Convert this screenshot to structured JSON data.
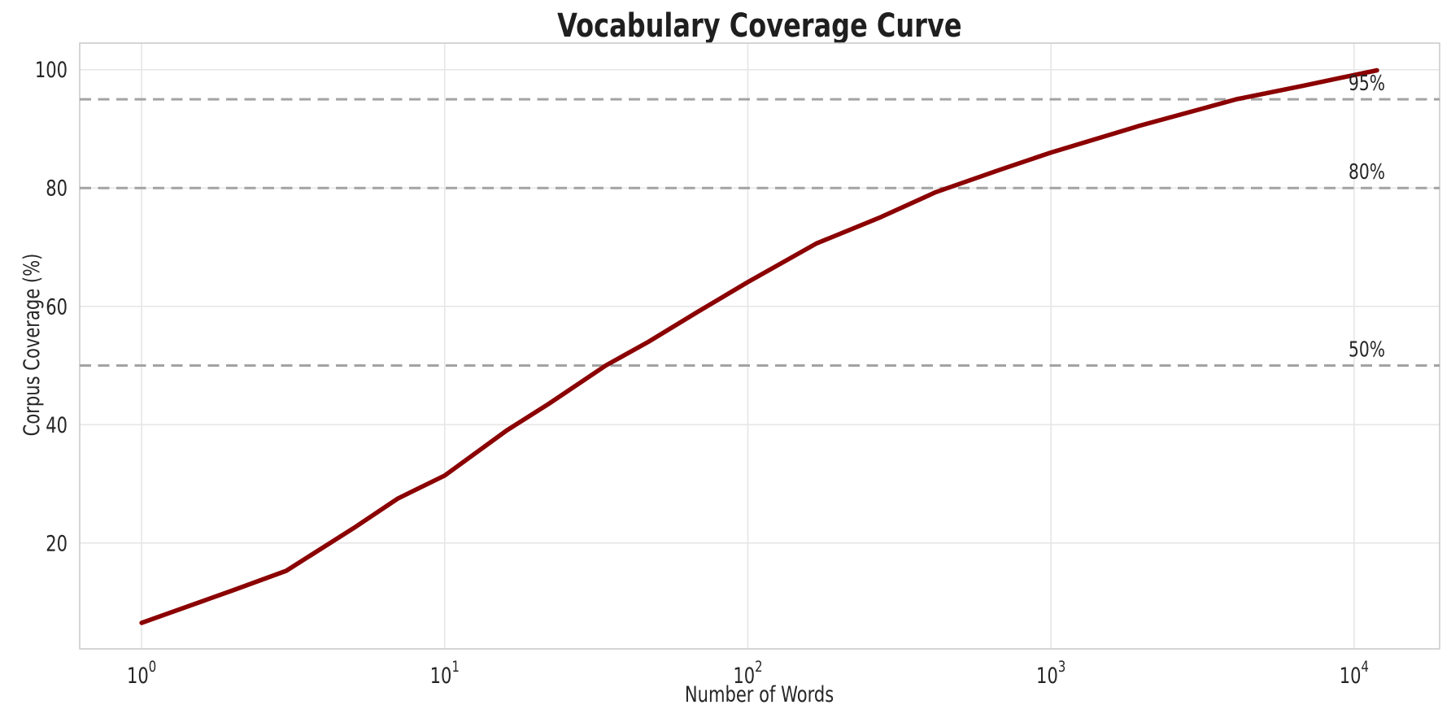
{
  "chart_data": {
    "type": "line",
    "title": "Vocabulary Coverage Curve",
    "xlabel": "Number of Words",
    "ylabel": "Corpus Coverage (%)",
    "x_scale": "log",
    "xlim": [
      0.625,
      19150
    ],
    "ylim": [
      2.1,
      104.5
    ],
    "grid": true,
    "legend": "none",
    "x_ticks": [
      {
        "base": "10",
        "exp": "0",
        "value": 1
      },
      {
        "base": "10",
        "exp": "1",
        "value": 10
      },
      {
        "base": "10",
        "exp": "2",
        "value": 100
      },
      {
        "base": "10",
        "exp": "3",
        "value": 1000
      },
      {
        "base": "10",
        "exp": "4",
        "value": 10000
      }
    ],
    "y_ticks": [
      {
        "label": "20",
        "value": 20
      },
      {
        "label": "40",
        "value": 40
      },
      {
        "label": "60",
        "value": 60
      },
      {
        "label": "80",
        "value": 80
      },
      {
        "label": "100",
        "value": 100
      }
    ],
    "reference_lines": [
      {
        "label": "50%",
        "value": 50
      },
      {
        "label": "80%",
        "value": 80
      },
      {
        "label": "95%",
        "value": 95
      }
    ],
    "series": [
      {
        "name": "Corpus Coverage",
        "color": "#8b0000",
        "points": [
          [
            1,
            6.5
          ],
          [
            2,
            12.0
          ],
          [
            3,
            15.3
          ],
          [
            5,
            22.5
          ],
          [
            7,
            27.5
          ],
          [
            10,
            31.4
          ],
          [
            16,
            39.0
          ],
          [
            22,
            43.5
          ],
          [
            34,
            50.0
          ],
          [
            47,
            54.0
          ],
          [
            68,
            59.0
          ],
          [
            100,
            64.1
          ],
          [
            168,
            70.6
          ],
          [
            275,
            75.1
          ],
          [
            417,
            79.3
          ],
          [
            680,
            83.1
          ],
          [
            1000,
            86.0
          ],
          [
            1950,
            90.5
          ],
          [
            3200,
            93.5
          ],
          [
            4085,
            95.0
          ],
          [
            6800,
            97.3
          ],
          [
            10000,
            99.1
          ],
          [
            11900,
            99.9
          ]
        ]
      }
    ],
    "colors": {
      "curve": "#8b0000",
      "reference_line": "#a3a3a3",
      "grid_line": "#e6e6e6",
      "spine": "#cbcbcb",
      "text": "#262626",
      "background": "#ffffff"
    }
  }
}
